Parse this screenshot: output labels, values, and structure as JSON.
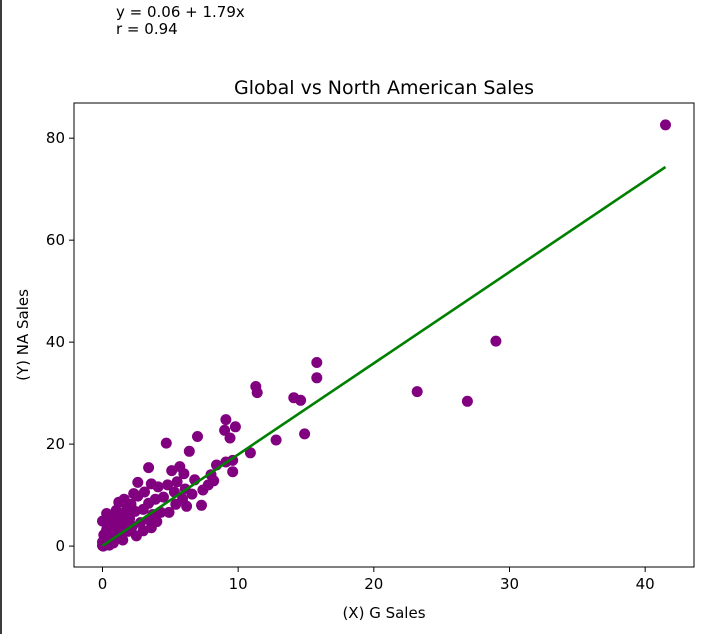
{
  "annotation": {
    "equation": "y = 0.06 + 1.79x",
    "correlation": "r = 0.94"
  },
  "colors": {
    "points": "#800080",
    "fit_line": "#008000",
    "axes": "#000000",
    "background": "#ffffff"
  },
  "chart_data": {
    "type": "scatter",
    "title": "Global vs North American Sales",
    "xlabel": "(X) G Sales",
    "ylabel": "(Y) NA Sales",
    "xlim": [
      -2.1,
      43.6
    ],
    "ylim": [
      -4.1,
      86.9
    ],
    "xticks": [
      0,
      10,
      20,
      30,
      40
    ],
    "yticks": [
      0,
      20,
      40,
      60,
      80
    ],
    "grid": false,
    "fit_line": {
      "intercept": 0.06,
      "slope": 1.79,
      "x_range": [
        0,
        41.5
      ]
    },
    "points": [
      [
        41.5,
        82.6
      ],
      [
        29.0,
        40.2
      ],
      [
        26.9,
        28.4
      ],
      [
        23.2,
        30.3
      ],
      [
        15.8,
        36.0
      ],
      [
        15.8,
        33.0
      ],
      [
        14.9,
        22.0
      ],
      [
        14.6,
        28.6
      ],
      [
        14.1,
        29.1
      ],
      [
        12.8,
        20.8
      ],
      [
        11.3,
        31.3
      ],
      [
        11.4,
        30.1
      ],
      [
        10.9,
        18.3
      ],
      [
        9.8,
        23.4
      ],
      [
        9.6,
        16.8
      ],
      [
        9.4,
        21.2
      ],
      [
        9.1,
        24.8
      ],
      [
        9.0,
        22.7
      ],
      [
        9.6,
        14.6
      ],
      [
        9.1,
        16.5
      ],
      [
        8.4,
        15.9
      ],
      [
        8.0,
        14.0
      ],
      [
        8.2,
        12.8
      ],
      [
        7.8,
        12.0
      ],
      [
        7.3,
        8.0
      ],
      [
        7.0,
        21.5
      ],
      [
        6.8,
        13.0
      ],
      [
        6.6,
        10.2
      ],
      [
        6.4,
        18.6
      ],
      [
        6.0,
        14.2
      ],
      [
        6.1,
        11.2
      ],
      [
        5.9,
        9.2
      ],
      [
        5.7,
        15.6
      ],
      [
        5.5,
        12.6
      ],
      [
        5.4,
        8.2
      ],
      [
        5.1,
        14.8
      ],
      [
        4.8,
        12.0
      ],
      [
        4.7,
        20.2
      ],
      [
        4.5,
        9.6
      ],
      [
        4.3,
        6.6
      ],
      [
        4.1,
        11.6
      ],
      [
        3.9,
        9.2
      ],
      [
        3.7,
        6.2
      ],
      [
        3.6,
        12.2
      ],
      [
        3.4,
        8.4
      ],
      [
        3.4,
        5.2
      ],
      [
        3.1,
        10.6
      ],
      [
        3.4,
        15.4
      ],
      [
        3.0,
        7.2
      ],
      [
        2.8,
        4.6
      ],
      [
        2.6,
        9.8
      ],
      [
        2.6,
        12.5
      ],
      [
        2.4,
        6.8
      ],
      [
        2.2,
        3.9
      ],
      [
        2.1,
        8.2
      ],
      [
        2.0,
        5.4
      ],
      [
        1.9,
        2.9
      ],
      [
        1.8,
        7.6
      ],
      [
        1.7,
        4.6
      ],
      [
        1.6,
        9.2
      ],
      [
        1.5,
        3.2
      ],
      [
        1.4,
        6.4
      ],
      [
        1.3,
        2.4
      ],
      [
        1.2,
        5.2
      ],
      [
        1.2,
        8.6
      ],
      [
        1.1,
        1.9
      ],
      [
        1.0,
        4.1
      ],
      [
        1.0,
        7.0
      ],
      [
        0.9,
        1.4
      ],
      [
        0.8,
        3.0
      ],
      [
        0.7,
        5.4
      ],
      [
        0.6,
        1.0
      ],
      [
        0.6,
        2.4
      ],
      [
        0.5,
        4.2
      ],
      [
        0.4,
        0.7
      ],
      [
        0.4,
        1.8
      ],
      [
        0.3,
        3.2
      ],
      [
        0.3,
        6.4
      ],
      [
        0.2,
        0.4
      ],
      [
        0.2,
        1.2
      ],
      [
        0.1,
        0.2
      ],
      [
        0.1,
        2.2
      ],
      [
        0.0,
        0.1
      ],
      [
        0.0,
        0.8
      ],
      [
        0.0,
        4.9
      ],
      [
        0.05,
        0.0
      ],
      [
        0.15,
        0.5
      ],
      [
        0.5,
        0.2
      ],
      [
        0.8,
        0.6
      ],
      [
        1.5,
        1.2
      ],
      [
        2.5,
        2.0
      ],
      [
        3.0,
        3.0
      ],
      [
        1.9,
        5.8
      ],
      [
        2.3,
        10.3
      ],
      [
        4.0,
        4.8
      ],
      [
        4.9,
        6.6
      ],
      [
        5.3,
        10.6
      ],
      [
        6.2,
        7.8
      ],
      [
        7.4,
        11.0
      ],
      [
        3.6,
        3.6
      ]
    ]
  }
}
